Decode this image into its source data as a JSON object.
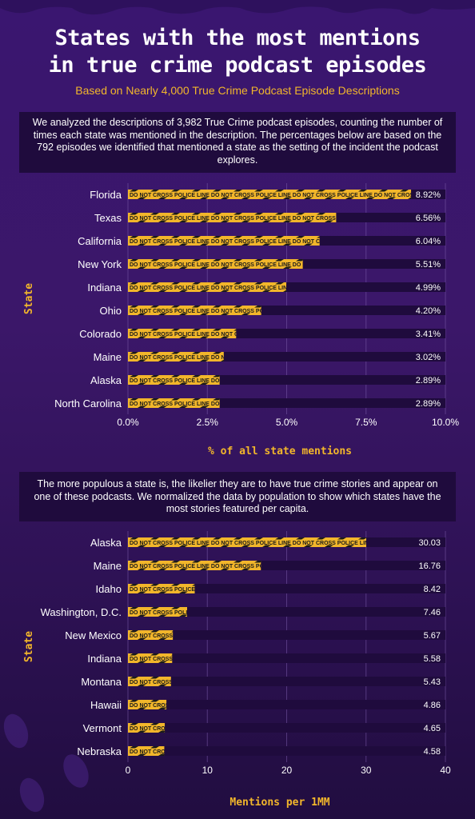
{
  "title_line1": "States with the most mentions",
  "title_line2": "in true crime podcast episodes",
  "subtitle": "Based on Nearly 4,000 True Crime Podcast Episode Descriptions",
  "note1": "We analyzed the descriptions of 3,982 True Crime podcast episodes, counting the number of times each state was mentioned in the description. The percentages below are based on the 792 episodes  we identified that mentioned a state as the setting of the incident the podcast explores.",
  "note2": "The more populous a state is, the likelier they are to have true crime stories and appear on one of these podcasts. We normalized the data by population to show which states have the most stories featured per capita.",
  "tape_text": "DO NOT CROSS   POLICE LINE DO NOT CROSS   POLICE LINE DO NOT CROSS   POLICE LINE DO NOT CROSS   POLICE LINE",
  "colors": {
    "tape": "#f2b62b",
    "tape_dark": "#1a1a1a",
    "track": "#1f0b3d",
    "accent": "#f2b62b"
  },
  "chart_data": [
    {
      "type": "bar",
      "orientation": "horizontal",
      "categories": [
        "Florida",
        "Texas",
        "California",
        "New York",
        "Indiana",
        "Ohio",
        "Colorado",
        "Maine",
        "Alaska",
        "North Carolina"
      ],
      "values": [
        8.92,
        6.56,
        6.04,
        5.51,
        4.99,
        4.2,
        3.41,
        3.02,
        2.89,
        2.89
      ],
      "value_labels": [
        "8.92%",
        "6.56%",
        "6.04%",
        "5.51%",
        "4.99%",
        "4.20%",
        "3.41%",
        "3.02%",
        "2.89%",
        "2.89%"
      ],
      "xlim": [
        0,
        10
      ],
      "ticks": [
        0,
        2.5,
        5,
        7.5,
        10
      ],
      "tick_labels": [
        "0.0%",
        "2.5%",
        "5.0%",
        "7.5%",
        "10.0%"
      ],
      "xlabel": "% of all state mentions",
      "ylabel": "State",
      "grid": true
    },
    {
      "type": "bar",
      "orientation": "horizontal",
      "categories": [
        "Alaska",
        "Maine",
        "Idaho",
        "Washington, D.C.",
        "New Mexico",
        "Indiana",
        "Montana",
        "Hawaii",
        "Vermont",
        "Nebraska"
      ],
      "values": [
        30.03,
        16.76,
        8.42,
        7.46,
        5.67,
        5.58,
        5.43,
        4.86,
        4.65,
        4.58
      ],
      "value_labels": [
        "30.03",
        "16.76",
        "8.42",
        "7.46",
        "5.67",
        "5.58",
        "5.43",
        "4.86",
        "4.65",
        "4.58"
      ],
      "xlim": [
        0,
        40
      ],
      "ticks": [
        0,
        10,
        20,
        30,
        40
      ],
      "tick_labels": [
        "0",
        "10",
        "20",
        "30",
        "40"
      ],
      "xlabel": "Mentions per 1MM",
      "ylabel": "State",
      "grid": true
    }
  ]
}
